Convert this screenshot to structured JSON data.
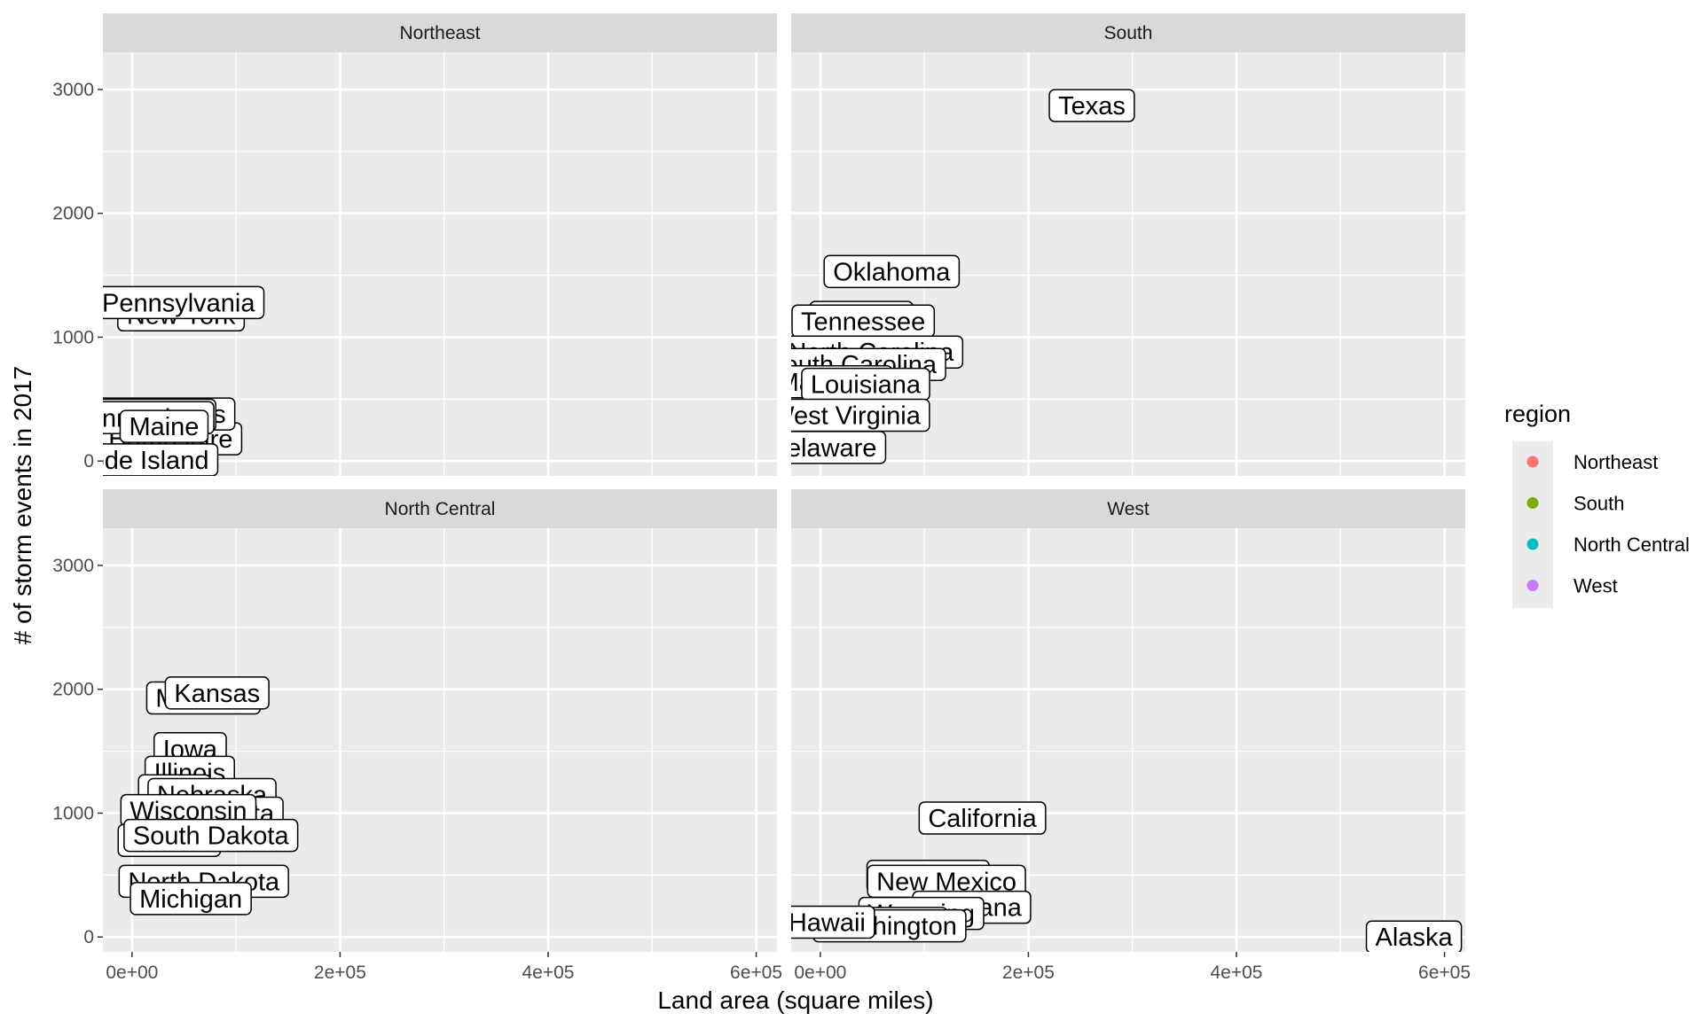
{
  "chart_data": {
    "type": "scatter",
    "xlabel": "Land area (square miles)",
    "ylabel": "# of storm events in 2017",
    "xlim": [
      -28000,
      620000
    ],
    "ylim": [
      -120,
      3300
    ],
    "x_ticks": [
      {
        "value": 0,
        "label": "0e+00"
      },
      {
        "value": 200000,
        "label": "2e+05"
      },
      {
        "value": 400000,
        "label": "4e+05"
      },
      {
        "value": 600000,
        "label": "6e+05"
      }
    ],
    "y_ticks": [
      {
        "value": 0,
        "label": "0"
      },
      {
        "value": 1000,
        "label": "1000"
      },
      {
        "value": 2000,
        "label": "2000"
      },
      {
        "value": 3000,
        "label": "3000"
      }
    ],
    "grid": true,
    "legend": {
      "title": "region",
      "position": "right",
      "entries": [
        {
          "name": "Northeast",
          "color": "#F8766D"
        },
        {
          "name": "South",
          "color": "#7CAE00"
        },
        {
          "name": "North Central",
          "color": "#00BFC4"
        },
        {
          "name": "West",
          "color": "#C77CFF"
        }
      ]
    },
    "panels": [
      {
        "name": "Northeast",
        "points": [
          {
            "label": "Vermont",
            "x": 9200,
            "y": 130
          },
          {
            "label": "New Hampshire",
            "x": 8900,
            "y": 180
          },
          {
            "label": "Massachusetts",
            "x": 7800,
            "y": 380
          },
          {
            "label": "New Jersey",
            "x": 7400,
            "y": 370
          },
          {
            "label": "Rhode Island",
            "x": 1000,
            "y": 10
          },
          {
            "label": "Connecticut",
            "x": 4800,
            "y": 350
          },
          {
            "label": "Maine",
            "x": 30800,
            "y": 280
          },
          {
            "label": "New York",
            "x": 47100,
            "y": 1180
          },
          {
            "label": "Pennsylvania",
            "x": 44700,
            "y": 1280
          }
        ]
      },
      {
        "name": "South",
        "points": [
          {
            "label": "Texas",
            "x": 261000,
            "y": 2870
          },
          {
            "label": "Oklahoma",
            "x": 68600,
            "y": 1530
          },
          {
            "label": "Virginia",
            "x": 39500,
            "y": 1160
          },
          {
            "label": "Tennessee",
            "x": 41200,
            "y": 1130
          },
          {
            "label": "North Carolina",
            "x": 48600,
            "y": 880
          },
          {
            "label": "South Carolina",
            "x": 30100,
            "y": 780
          },
          {
            "label": "Maryland",
            "x": 9700,
            "y": 640
          },
          {
            "label": "Louisiana",
            "x": 43600,
            "y": 620
          },
          {
            "label": "West Virginia",
            "x": 24000,
            "y": 370
          },
          {
            "label": "Delaware",
            "x": 2000,
            "y": 110
          }
        ]
      },
      {
        "name": "North Central",
        "points": [
          {
            "label": "Missouri",
            "x": 68700,
            "y": 1930
          },
          {
            "label": "Kansas",
            "x": 81800,
            "y": 1970
          },
          {
            "label": "Iowa",
            "x": 55900,
            "y": 1520
          },
          {
            "label": "Illinois",
            "x": 55500,
            "y": 1330
          },
          {
            "label": "Ohio",
            "x": 40900,
            "y": 1180
          },
          {
            "label": "Nebraska",
            "x": 76900,
            "y": 1150
          },
          {
            "label": "Minnesota",
            "x": 79600,
            "y": 1000
          },
          {
            "label": "Wisconsin",
            "x": 54200,
            "y": 1020
          },
          {
            "label": "Indiana",
            "x": 35800,
            "y": 780
          },
          {
            "label": "South Dakota",
            "x": 75800,
            "y": 820
          },
          {
            "label": "North Dakota",
            "x": 69000,
            "y": 450
          },
          {
            "label": "Michigan",
            "x": 56500,
            "y": 310
          }
        ]
      },
      {
        "name": "West",
        "points": [
          {
            "label": "California",
            "x": 155800,
            "y": 960
          },
          {
            "label": "Colorado",
            "x": 103600,
            "y": 490
          },
          {
            "label": "New Mexico",
            "x": 121300,
            "y": 450
          },
          {
            "label": "Montana",
            "x": 145500,
            "y": 240
          },
          {
            "label": "Wyoming",
            "x": 97100,
            "y": 190
          },
          {
            "label": "Idaho",
            "x": 82600,
            "y": 110
          },
          {
            "label": "Washington",
            "x": 66500,
            "y": 90
          },
          {
            "label": "Hawaii",
            "x": 6400,
            "y": 120
          },
          {
            "label": "Alaska",
            "x": 570600,
            "y": 0
          }
        ]
      }
    ]
  }
}
